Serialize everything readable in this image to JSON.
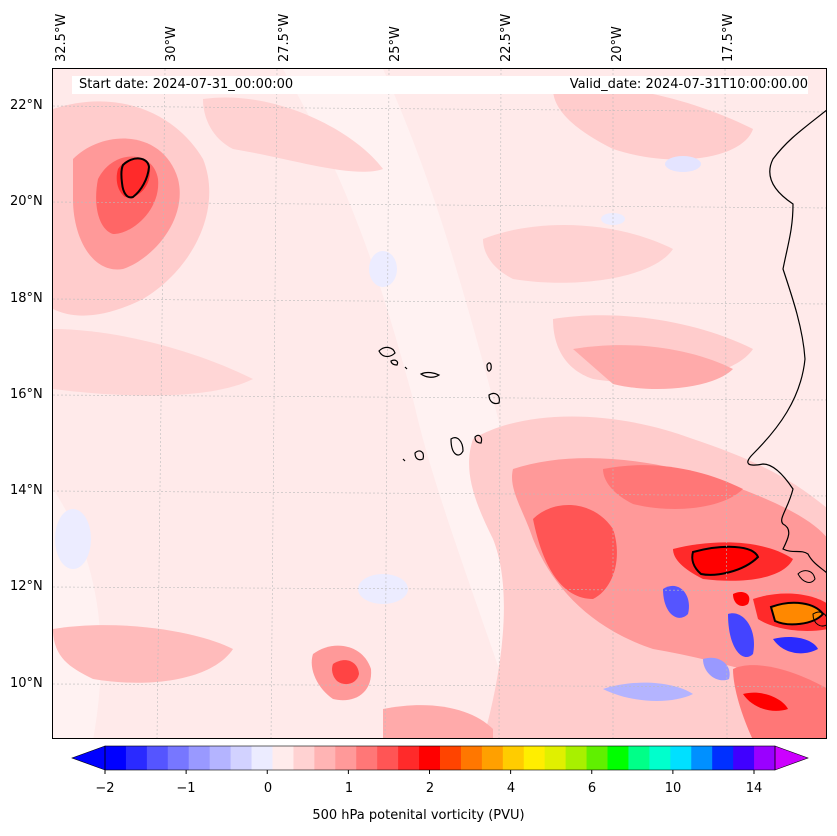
{
  "map": {
    "start_date": "Start date: 2024-07-31_00:00:00",
    "valid_date": "Valid_date: 2024-07-31T10:00:00.00",
    "lon_labels": [
      "32.5°W",
      "30°W",
      "27.5°W",
      "25°W",
      "22.5°W",
      "20°W",
      "17.5°W"
    ],
    "lat_labels": [
      "22°N",
      "20°N",
      "18°N",
      "16°N",
      "14°N",
      "12°N",
      "10°N"
    ],
    "background_color": "#ffeaea",
    "coast_color": "#000000"
  },
  "colorbar": {
    "title": "500 hPa potenital vorticity (PVU)",
    "ticks": [
      "−2",
      "−1",
      "0",
      "1",
      "2",
      "4",
      "6",
      "10",
      "14"
    ],
    "colors": [
      "#0000ff",
      "#2a2aff",
      "#5555ff",
      "#7777ff",
      "#9999ff",
      "#b4b4ff",
      "#d2d2ff",
      "#ececff",
      "#ffecec",
      "#ffd2d2",
      "#ffb4b4",
      "#ff9999",
      "#ff7777",
      "#ff5555",
      "#ff2a2a",
      "#ff0000",
      "#ff4400",
      "#ff7700",
      "#ffa000",
      "#ffcc00",
      "#ffee00",
      "#e0f000",
      "#a8f000",
      "#60f000",
      "#00ff00",
      "#00ff88",
      "#00ffcc",
      "#00e0ff",
      "#0090ff",
      "#0030ff",
      "#4000ff",
      "#9a00ff"
    ]
  }
}
